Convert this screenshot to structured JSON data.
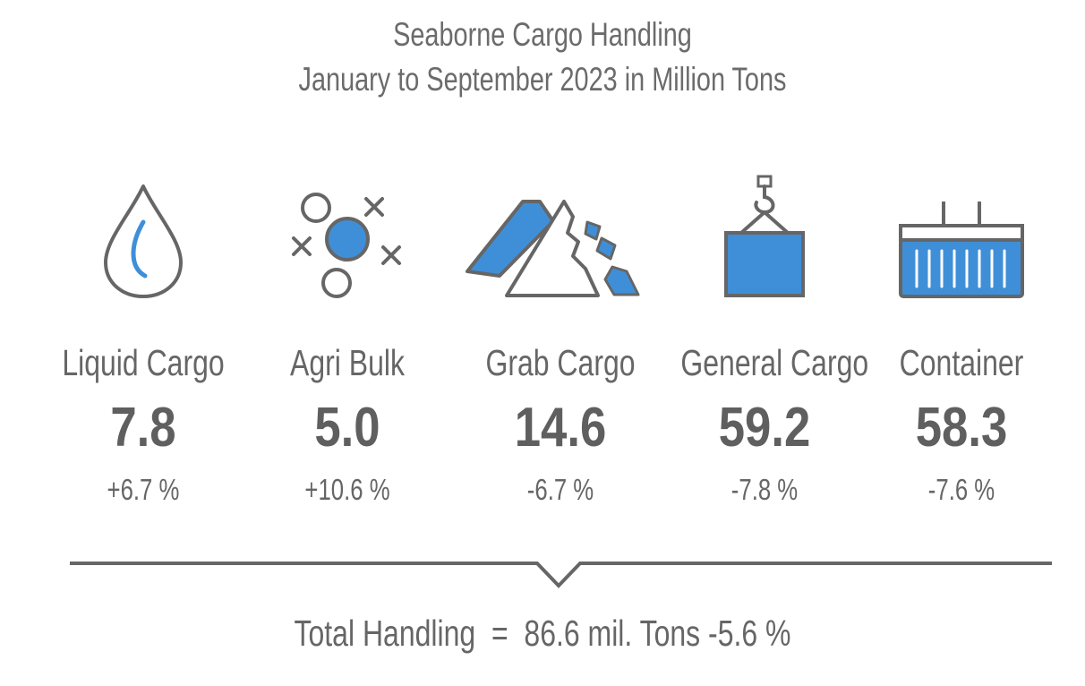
{
  "title": "Seaborne Cargo Handling",
  "subtitle": "January to September 2023 in Million Tons",
  "colors": {
    "accent": "#3f8fd8",
    "outline": "#666666",
    "text": "#666666"
  },
  "chart_data": {
    "type": "table",
    "title": "Seaborne Cargo Handling",
    "subtitle": "January to September 2023 in Million Tons",
    "categories": [
      "Liquid Cargo",
      "Agri Bulk",
      "Grab Cargo",
      "General Cargo",
      "Container"
    ],
    "values": [
      "7.8",
      "5.0",
      "14.6",
      "59.2",
      "58.3"
    ],
    "changes": [
      "+6.7 %",
      "+10.6 %",
      "-6.7 %",
      "-7.8 %",
      "-7.6 %"
    ],
    "icons": [
      "droplet-icon",
      "grain-icon",
      "bulk-pile-icon",
      "crane-hook-icon",
      "shipping-container-icon"
    ],
    "total": {
      "label": "Total Handling",
      "equals": "=",
      "value": "86.6 mil. Tons",
      "change": "-5.6 %"
    }
  }
}
